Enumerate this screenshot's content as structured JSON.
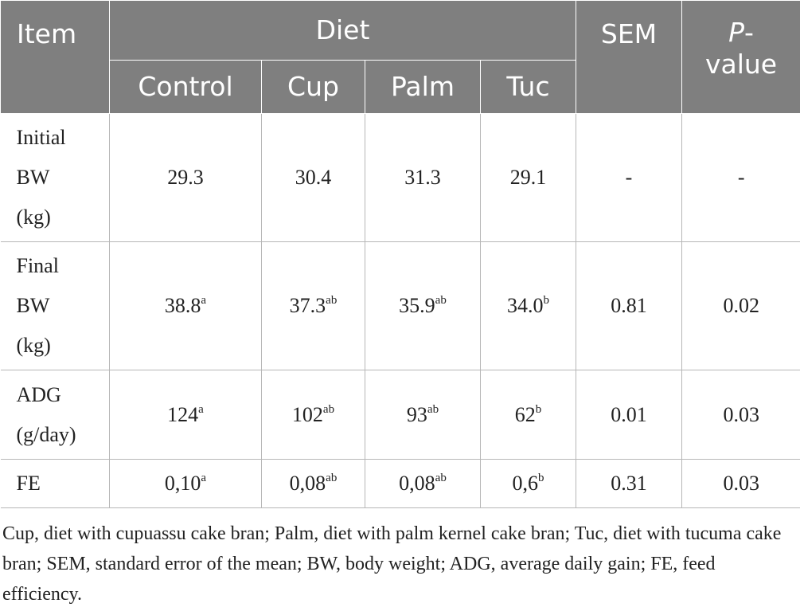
{
  "table": {
    "headers": {
      "item": "Item",
      "diet": "Diet",
      "sem": "SEM",
      "p_value_italic": "P",
      "p_value_suffix": "-",
      "p_value_word": "value",
      "subheaders": [
        "Control",
        "Cup",
        "Palm",
        "Tuc"
      ]
    },
    "rows": [
      {
        "item_lines": [
          "Initial",
          "BW",
          "(kg)"
        ],
        "values": [
          {
            "v": "29.3",
            "sup": ""
          },
          {
            "v": "30.4",
            "sup": ""
          },
          {
            "v": "31.3",
            "sup": ""
          },
          {
            "v": "29.1",
            "sup": ""
          }
        ],
        "sem": "-",
        "p": "-"
      },
      {
        "item_lines": [
          "Final",
          "BW",
          "(kg)"
        ],
        "values": [
          {
            "v": "38.8",
            "sup": "a"
          },
          {
            "v": "37.3",
            "sup": "ab"
          },
          {
            "v": "35.9",
            "sup": "ab"
          },
          {
            "v": "34.0",
            "sup": "b"
          }
        ],
        "sem": "0.81",
        "p": "0.02"
      },
      {
        "item_lines": [
          "ADG",
          "(g/day)"
        ],
        "values": [
          {
            "v": "124",
            "sup": "a"
          },
          {
            "v": "102",
            "sup": "ab"
          },
          {
            "v": "93",
            "sup": "ab"
          },
          {
            "v": "62",
            "sup": "b"
          }
        ],
        "sem": "0.01",
        "p": "0.03"
      },
      {
        "item_lines": [
          "FE"
        ],
        "values": [
          {
            "v": "0,10",
            "sup": "a"
          },
          {
            "v": "0,08",
            "sup": "ab"
          },
          {
            "v": "0,08",
            "sup": "ab"
          },
          {
            "v": "0,6",
            "sup": "b"
          }
        ],
        "sem": "0.31",
        "p": "0.03"
      }
    ]
  },
  "footnote": "Cup, diet with cupuassu cake bran; Palm, diet with palm kernel cake bran; Tuc, diet with tucuma cake bran; SEM, standard error of the mean; BW, body weight; ADG, average daily gain; FE, feed efficiency.",
  "colors": {
    "header_bg": "#7f7f7f",
    "header_text": "#ffffff",
    "body_text": "#222222",
    "rule": "#b7b7b7"
  }
}
